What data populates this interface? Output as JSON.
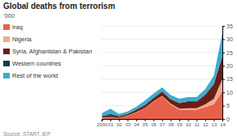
{
  "chart_data": {
    "type": "area",
    "stacked": true,
    "title": "Global deaths from terrorism",
    "ylabel": "’000",
    "annotations": [
      "Source: START, IEP"
    ],
    "x": [
      2000,
      2001,
      2002,
      2003,
      2004,
      2005,
      2006,
      2007,
      2008,
      2009,
      2010,
      2011,
      2012,
      2013,
      2014
    ],
    "series": [
      {
        "name": "Iraq",
        "color": "#E8604A",
        "values": [
          0.5,
          0.5,
          0.3,
          1.2,
          2.5,
          4.0,
          6.5,
          8.5,
          5.5,
          3.5,
          3.5,
          3.5,
          4.5,
          5.5,
          10.5
        ]
      },
      {
        "name": "Nigeria",
        "color": "#F2AA90",
        "values": [
          0.1,
          0.1,
          0.1,
          0.1,
          0.1,
          0.1,
          0.1,
          0.2,
          0.3,
          0.4,
          0.5,
          0.5,
          1.0,
          2.0,
          4.5
        ]
      },
      {
        "name": "Syria, Afghanistan & Pakistan",
        "color": "#6B1E13",
        "values": [
          0.3,
          0.5,
          0.4,
          0.5,
          0.8,
          1.0,
          1.2,
          1.5,
          1.5,
          2.0,
          2.5,
          2.5,
          3.5,
          5.5,
          8.5
        ]
      },
      {
        "name": "Western countries",
        "color": "#1C3A4A",
        "values": [
          0.2,
          0.8,
          0.3,
          0.2,
          0.2,
          0.3,
          0.2,
          0.2,
          0.2,
          0.2,
          0.2,
          0.2,
          0.2,
          0.2,
          0.3
        ]
      },
      {
        "name": "Rest of the world",
        "color": "#3AACCF",
        "values": [
          1.0,
          2.0,
          0.8,
          0.8,
          1.0,
          1.5,
          1.5,
          1.5,
          1.5,
          1.5,
          1.5,
          1.5,
          2.0,
          3.0,
          8.5
        ]
      }
    ],
    "xlim": [
      2000,
      2014
    ],
    "xticks": [
      2000,
      {
        "value": 2001,
        "label": "01"
      },
      {
        "value": 2002,
        "label": "02"
      },
      {
        "value": 2003,
        "label": "03"
      },
      {
        "value": 2004,
        "label": "04"
      },
      {
        "value": 2005,
        "label": "05"
      },
      {
        "value": 2006,
        "label": "06"
      },
      {
        "value": 2007,
        "label": "07"
      },
      {
        "value": 2008,
        "label": "08"
      },
      {
        "value": 2009,
        "label": "09"
      },
      {
        "value": 2010,
        "label": "10"
      },
      {
        "value": 2011,
        "label": "11"
      },
      {
        "value": 2012,
        "label": "12"
      },
      {
        "value": 2013,
        "label": "13"
      },
      {
        "value": 2014,
        "label": "14"
      }
    ],
    "ylim": [
      0,
      35
    ],
    "yticks": [
      0,
      5,
      10,
      15,
      20,
      25,
      30,
      35
    ],
    "grid": true,
    "legend": "left"
  }
}
